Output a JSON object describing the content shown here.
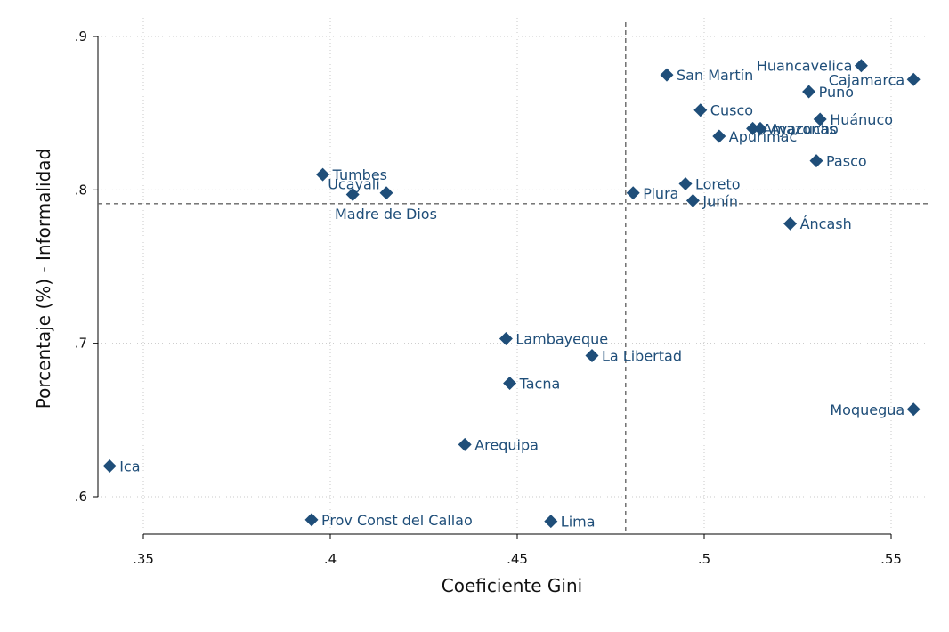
{
  "chart_data": {
    "type": "scatter",
    "xlabel": "Coeficiente Gini",
    "ylabel": "Porcentaje (%) - Informalidad",
    "xlim": [
      0.341,
      0.558
    ],
    "ylim": [
      0.581,
      0.91
    ],
    "x_ticks": [
      0.35,
      0.4,
      0.45,
      0.5,
      0.55
    ],
    "x_tick_labels": [
      ".35",
      ".4",
      ".45",
      ".5",
      ".55"
    ],
    "y_ticks": [
      0.6,
      0.7,
      0.8,
      0.9
    ],
    "y_tick_labels": [
      ".6",
      ".7",
      ".8",
      ".9"
    ],
    "reference_lines": {
      "x": 0.479,
      "y": 0.791
    },
    "grid": true,
    "marker": "diamond",
    "marker_color": "#1F4E79",
    "label_color": "#1F4E79",
    "points": [
      {
        "label": "Huancavelica",
        "x": 0.542,
        "y": 0.881,
        "pos": "left"
      },
      {
        "label": "Cajamarca",
        "x": 0.556,
        "y": 0.872,
        "pos": "left"
      },
      {
        "label": "San Martín",
        "x": 0.49,
        "y": 0.875,
        "pos": "right"
      },
      {
        "label": "Puno",
        "x": 0.528,
        "y": 0.864,
        "pos": "right"
      },
      {
        "label": "Cusco",
        "x": 0.499,
        "y": 0.852,
        "pos": "right"
      },
      {
        "label": "Huánuco",
        "x": 0.531,
        "y": 0.846,
        "pos": "right"
      },
      {
        "label": "Amazonas",
        "x": 0.513,
        "y": 0.84,
        "pos": "right"
      },
      {
        "label": "Ayacucho",
        "x": 0.515,
        "y": 0.84,
        "pos": "right"
      },
      {
        "label": "Apurímac",
        "x": 0.504,
        "y": 0.835,
        "pos": "right"
      },
      {
        "label": "Pasco",
        "x": 0.53,
        "y": 0.819,
        "pos": "right"
      },
      {
        "label": "Tumbes",
        "x": 0.398,
        "y": 0.81,
        "pos": "right"
      },
      {
        "label": "Ucayali",
        "x": 0.406,
        "y": 0.797,
        "pos": "above"
      },
      {
        "label": "Madre de Dios",
        "x": 0.415,
        "y": 0.798,
        "pos": "below"
      },
      {
        "label": "Piura",
        "x": 0.481,
        "y": 0.798,
        "pos": "right"
      },
      {
        "label": "Loreto",
        "x": 0.495,
        "y": 0.804,
        "pos": "right"
      },
      {
        "label": "Junín",
        "x": 0.497,
        "y": 0.793,
        "pos": "right"
      },
      {
        "label": "Áncash",
        "x": 0.523,
        "y": 0.778,
        "pos": "right"
      },
      {
        "label": "Lambayeque",
        "x": 0.447,
        "y": 0.703,
        "pos": "right"
      },
      {
        "label": "La Libertad",
        "x": 0.47,
        "y": 0.692,
        "pos": "right"
      },
      {
        "label": "Tacna",
        "x": 0.448,
        "y": 0.674,
        "pos": "right"
      },
      {
        "label": "Moquegua",
        "x": 0.556,
        "y": 0.657,
        "pos": "left"
      },
      {
        "label": "Arequipa",
        "x": 0.436,
        "y": 0.634,
        "pos": "right"
      },
      {
        "label": "Ica",
        "x": 0.341,
        "y": 0.62,
        "pos": "right"
      },
      {
        "label": "Prov Const del Callao",
        "x": 0.395,
        "y": 0.585,
        "pos": "right"
      },
      {
        "label": "Lima",
        "x": 0.459,
        "y": 0.584,
        "pos": "right"
      }
    ]
  }
}
